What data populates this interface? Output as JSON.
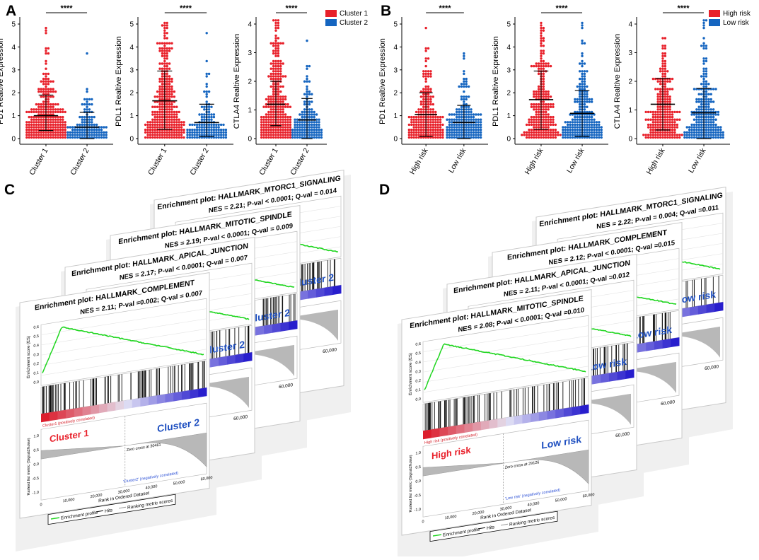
{
  "panels": {
    "A": {
      "label": "A",
      "legend": [
        "Cluster 1",
        "Cluster 2"
      ]
    },
    "B": {
      "label": "B",
      "legend": [
        "High risk",
        "Low risk"
      ]
    },
    "C": {
      "label": "C"
    },
    "D": {
      "label": "D"
    }
  },
  "chart_data": [
    {
      "type": "scatter",
      "panel": "A",
      "subtype": "dot-plot",
      "ylabel": "PD1 Realtive Expression",
      "categories": [
        "Cluster 1",
        "Cluster 2"
      ],
      "ylim": [
        0,
        5
      ],
      "yticks": [
        0,
        1,
        2,
        3,
        4,
        5
      ],
      "significance": "****",
      "series": [
        {
          "name": "Cluster 1",
          "color": "#e8202a",
          "n": 320,
          "mean": 1.0,
          "sd_low": 0.35,
          "sd_high": 1.9,
          "max": 4.85
        },
        {
          "name": "Cluster 2",
          "color": "#1565c0",
          "n": 170,
          "mean": 0.5,
          "sd_low": 0.0,
          "sd_high": 1.15,
          "max": 3.7
        }
      ]
    },
    {
      "type": "scatter",
      "panel": "A",
      "subtype": "dot-plot",
      "ylabel": "PDL1 Realtive Expression",
      "categories": [
        "Cluster 1",
        "Cluster 2"
      ],
      "ylim": [
        0,
        5
      ],
      "yticks": [
        0,
        1,
        2,
        3,
        4,
        5
      ],
      "significance": "****",
      "series": [
        {
          "name": "Cluster 1",
          "color": "#e8202a",
          "n": 320,
          "mean": 1.65,
          "sd_low": 0.4,
          "sd_high": 2.95,
          "max": 5.1
        },
        {
          "name": "Cluster 2",
          "color": "#1565c0",
          "n": 170,
          "mean": 0.7,
          "sd_low": 0.1,
          "sd_high": 1.5,
          "max": 4.6
        }
      ]
    },
    {
      "type": "scatter",
      "panel": "A",
      "subtype": "dot-plot",
      "ylabel": "CTLA4 Realtive Expression",
      "categories": [
        "Cluster 1",
        "Cluster 2"
      ],
      "ylim": [
        0,
        4
      ],
      "yticks": [
        0,
        1,
        2,
        3,
        4
      ],
      "significance": "****",
      "series": [
        {
          "name": "Cluster 1",
          "color": "#e8202a",
          "n": 320,
          "mean": 1.2,
          "sd_low": 0.45,
          "sd_high": 2.0,
          "max": 4.15
        },
        {
          "name": "Cluster 2",
          "color": "#1565c0",
          "n": 170,
          "mean": 0.65,
          "sd_low": 0.0,
          "sd_high": 1.4,
          "max": 3.45
        }
      ]
    },
    {
      "type": "scatter",
      "panel": "B",
      "subtype": "dot-plot",
      "ylabel": "PD1 Realtive Expression",
      "categories": [
        "High risk",
        "Low risk"
      ],
      "ylim": [
        0,
        5
      ],
      "yticks": [
        0,
        1,
        2,
        3,
        4,
        5
      ],
      "significance": "****",
      "series": [
        {
          "name": "High risk",
          "color": "#e8202a",
          "n": 240,
          "mean": 1.05,
          "sd_low": 0.1,
          "sd_high": 2.0,
          "max": 4.85
        },
        {
          "name": "Low risk",
          "color": "#1565c0",
          "n": 250,
          "mean": 0.7,
          "sd_low": 0.0,
          "sd_high": 1.45,
          "max": 3.7
        }
      ]
    },
    {
      "type": "scatter",
      "panel": "B",
      "subtype": "dot-plot",
      "ylabel": "PDL1 Realtive Expression",
      "categories": [
        "High risk",
        "Low risk"
      ],
      "ylim": [
        0,
        5
      ],
      "yticks": [
        0,
        1,
        2,
        3,
        4,
        5
      ],
      "significance": "****",
      "series": [
        {
          "name": "High risk",
          "color": "#e8202a",
          "n": 240,
          "mean": 1.7,
          "sd_low": 0.4,
          "sd_high": 2.95,
          "max": 5.1
        },
        {
          "name": "Low risk",
          "color": "#1565c0",
          "n": 250,
          "mean": 1.1,
          "sd_low": 0.1,
          "sd_high": 2.1,
          "max": 5.05
        }
      ]
    },
    {
      "type": "scatter",
      "panel": "B",
      "subtype": "dot-plot",
      "ylabel": "CTLA4 Realtive Expression",
      "categories": [
        "High risk",
        "Low risk"
      ],
      "ylim": [
        0,
        4
      ],
      "yticks": [
        0,
        1,
        2,
        3,
        4
      ],
      "significance": "****",
      "series": [
        {
          "name": "High risk",
          "color": "#e8202a",
          "n": 240,
          "mean": 1.2,
          "sd_low": 0.3,
          "sd_high": 2.1,
          "max": 3.55
        },
        {
          "name": "Low risk",
          "color": "#1565c0",
          "n": 250,
          "mean": 0.9,
          "sd_low": 0.0,
          "sd_high": 1.75,
          "max": 4.15
        }
      ]
    },
    {
      "type": "line",
      "panel": "C",
      "subtype": "gsea-enrichment",
      "pos_label": "Cluster 1",
      "neg_label": "Cluster 2",
      "pos_tag": "Cluster1 (positively correlated)",
      "neg_tag": "'Cluster2' (negatively correlated)",
      "zero_cross": "Zero cross at 30461",
      "zero_cross_rank": 30461,
      "xlabel": "Rank in Ordered Dataset",
      "ylabel": "Enrichment score (ES)",
      "ylabel2": "Ranked list metric (Signal2Noise)",
      "xticks": [
        "0",
        "10,000",
        "20,000",
        "30,000",
        "40,000",
        "50,000",
        "60,000"
      ],
      "es_yticks": [
        "0.0",
        "0.1",
        "0.2",
        "0.3",
        "0.4",
        "0.5",
        "0.6"
      ],
      "metric_yticks": [
        "1.0",
        "0.5",
        "0.0",
        "-0.5",
        "-1.0"
      ],
      "legend": [
        "Enrichment profile",
        "Hits",
        "Ranking metric scores"
      ],
      "plots": [
        {
          "title": "Enrichment plot: HALLMARK_MTORC1_SIGNALING",
          "stats": "NES = 2.21; P-val < 0.0001; Q-val = 0.014",
          "nes": 2.21,
          "qval": 0.014
        },
        {
          "title": "Enrichment plot: HALLMARK_MITOTIC_SPINDLE",
          "stats": "NES = 2.19; P-val < 0.0001; Q-val = 0.009",
          "nes": 2.19,
          "qval": 0.009
        },
        {
          "title": "Enrichment plot: HALLMARK_APICAL_JUNCTION",
          "stats": "NES = 2.17; P-val < 0.0001; Q-val = 0.007",
          "nes": 2.17,
          "qval": 0.007
        },
        {
          "title": "Enrichment plot: HALLMARK_COMPLEMENT",
          "stats": "NES = 2.11; P-val =0.002; Q-val = 0.007",
          "nes": 2.11,
          "qval": 0.007
        }
      ]
    },
    {
      "type": "line",
      "panel": "D",
      "subtype": "gsea-enrichment",
      "pos_label": "High risk",
      "neg_label": "Low risk",
      "pos_tag": "High risk (positively correlated)",
      "neg_tag": "'Low risk' (negatively correlated)",
      "zero_cross": "Zero cross at 29126",
      "zero_cross_rank": 29126,
      "xlabel": "Rank in Ordered Dataset",
      "ylabel": "Enrichment score (ES)",
      "ylabel2": "Ranked list metric (Signal2Noise)",
      "xticks": [
        "0",
        "10,000",
        "20,000",
        "30,000",
        "40,000",
        "50,000",
        "60,000"
      ],
      "es_yticks": [
        "0.0",
        "0.1",
        "0.2",
        "0.3",
        "0.4",
        "0.5",
        "0.6"
      ],
      "metric_yticks": [
        "1.0",
        "0.5",
        "0.0",
        "-0.5",
        "-1.0"
      ],
      "legend": [
        "Enrichment profile",
        "Hits",
        "Ranking metric scores"
      ],
      "plots": [
        {
          "title": "Enrichment plot: HALLMARK_MTORC1_SIGNALING",
          "stats": "NES = 2.22; P-val = 0.004; Q-val =0.011",
          "nes": 2.22,
          "qval": 0.011
        },
        {
          "title": "Enrichment plot: HALLMARK_COMPLEMENT",
          "stats": "NES = 2.12; P-val < 0.0001; Q-val =0.015",
          "nes": 2.12,
          "qval": 0.015
        },
        {
          "title": "Enrichment plot: HALLMARK_APICAL_JUNCTION",
          "stats": "NES = 2.11; P-val < 0.0001; Q-val =0.012",
          "nes": 2.11,
          "qval": 0.012
        },
        {
          "title": "Enrichment plot: HALLMARK_MITOTIC_SPINDLE",
          "stats": "NES = 2.08; P-val < 0.0001; Q-val =0.010",
          "nes": 2.08,
          "qval": 0.01
        }
      ]
    }
  ]
}
